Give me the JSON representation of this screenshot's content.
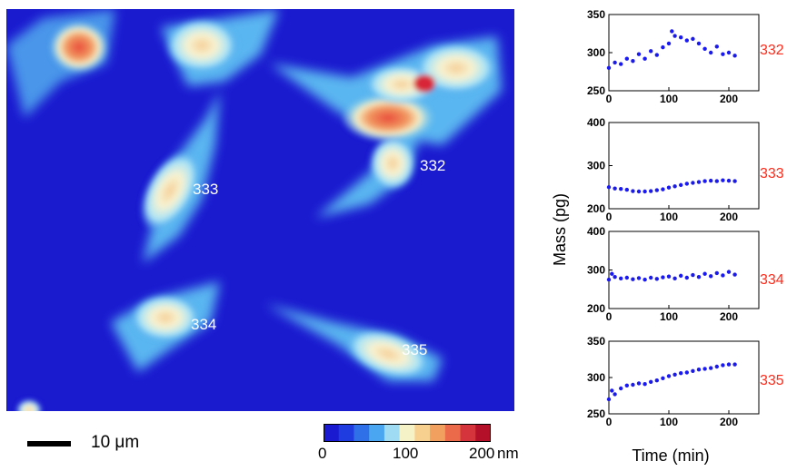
{
  "image": {
    "cells": [
      {
        "label": "333"
      },
      {
        "label": "332"
      },
      {
        "label": "334"
      },
      {
        "label": "335"
      }
    ],
    "scalebar_label": "10 μm",
    "colorbar": {
      "ticks": [
        "0",
        "100",
        "200"
      ],
      "unit": "nm",
      "colors": [
        "#1a1ad0",
        "#1f3ce0",
        "#2f6fe8",
        "#4aa6f0",
        "#9fdcf4",
        "#f6f2c8",
        "#f7cf8e",
        "#f2a060",
        "#ea6a4a",
        "#d6343c",
        "#b4102a"
      ]
    }
  },
  "chart_data": [
    {
      "type": "scatter",
      "name": "332",
      "color": "#1a1aee",
      "xlim": [
        0,
        250
      ],
      "ylim": [
        250,
        350
      ],
      "xticks": [
        0,
        100,
        200
      ],
      "yticks": [
        250,
        300,
        350
      ],
      "x": [
        0,
        10,
        20,
        30,
        40,
        50,
        60,
        70,
        80,
        90,
        100,
        105,
        110,
        120,
        130,
        140,
        150,
        160,
        170,
        180,
        190,
        200,
        210
      ],
      "y": [
        280,
        287,
        285,
        292,
        289,
        298,
        292,
        302,
        297,
        307,
        312,
        328,
        322,
        320,
        316,
        318,
        312,
        305,
        300,
        308,
        298,
        300,
        296
      ]
    },
    {
      "type": "scatter",
      "name": "333",
      "color": "#1a1aee",
      "xlim": [
        0,
        250
      ],
      "ylim": [
        200,
        400
      ],
      "xticks": [
        0,
        100,
        200
      ],
      "yticks": [
        200,
        300,
        400
      ],
      "x": [
        0,
        10,
        20,
        30,
        40,
        50,
        60,
        70,
        80,
        90,
        100,
        110,
        120,
        130,
        140,
        150,
        160,
        170,
        180,
        190,
        200,
        210
      ],
      "y": [
        250,
        247,
        246,
        244,
        241,
        240,
        240,
        241,
        243,
        245,
        249,
        252,
        255,
        258,
        260,
        262,
        264,
        265,
        264,
        266,
        265,
        264
      ]
    },
    {
      "type": "scatter",
      "name": "334",
      "color": "#1a1aee",
      "xlim": [
        0,
        250
      ],
      "ylim": [
        200,
        400
      ],
      "xticks": [
        0,
        100,
        200
      ],
      "yticks": [
        200,
        300,
        400
      ],
      "x": [
        0,
        5,
        10,
        20,
        30,
        40,
        50,
        60,
        70,
        80,
        90,
        100,
        110,
        120,
        130,
        140,
        150,
        160,
        170,
        180,
        190,
        200,
        210
      ],
      "y": [
        275,
        290,
        282,
        278,
        280,
        276,
        279,
        275,
        280,
        277,
        281,
        283,
        278,
        285,
        280,
        287,
        282,
        290,
        284,
        292,
        286,
        295,
        288
      ]
    },
    {
      "type": "scatter",
      "name": "335",
      "color": "#1a1aee",
      "xlim": [
        0,
        250
      ],
      "ylim": [
        250,
        350
      ],
      "xticks": [
        0,
        100,
        200
      ],
      "yticks": [
        250,
        300,
        350
      ],
      "x": [
        0,
        5,
        10,
        20,
        30,
        40,
        50,
        60,
        70,
        80,
        90,
        100,
        110,
        120,
        130,
        140,
        150,
        160,
        170,
        180,
        190,
        200,
        210
      ],
      "y": [
        270,
        282,
        277,
        285,
        289,
        290,
        292,
        291,
        294,
        296,
        299,
        302,
        304,
        306,
        307,
        309,
        311,
        312,
        313,
        315,
        317,
        318,
        318
      ]
    }
  ],
  "axes": {
    "xlabel": "Time (min)",
    "ylabel": "Mass (pg)"
  }
}
